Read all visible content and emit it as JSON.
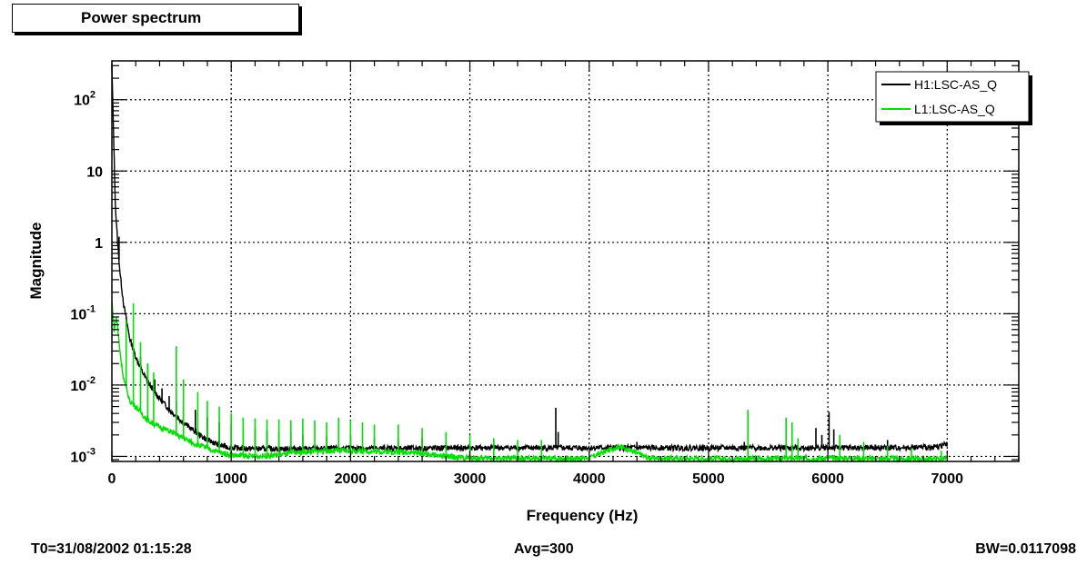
{
  "title": "Power spectrum",
  "footer": {
    "t0": "T0=31/08/2002 01:15:28",
    "avg": "Avg=300",
    "bw": "BW=0.0117098"
  },
  "chart_data": {
    "type": "line",
    "title": "Power spectrum",
    "xlabel": "Frequency (Hz)",
    "ylabel": "Magnitude",
    "xlim": [
      0,
      7600
    ],
    "ylim": [
      0.00085,
      350
    ],
    "yscale": "log",
    "grid": true,
    "legend_position": "top-right",
    "x_ticks": [
      0,
      1000,
      2000,
      3000,
      4000,
      5000,
      6000,
      7000
    ],
    "x_tick_labels": [
      "0",
      "1000",
      "2000",
      "3000",
      "4000",
      "5000",
      "6000",
      "7000"
    ],
    "y_ticks": [
      0.001,
      0.01,
      0.1,
      1,
      10,
      100
    ],
    "y_tick_labels": [
      {
        "base": "10",
        "exp": "-3"
      },
      {
        "base": "10",
        "exp": "-2"
      },
      {
        "base": "10",
        "exp": "-1"
      },
      {
        "base": "1",
        "exp": ""
      },
      {
        "base": "10",
        "exp": ""
      },
      {
        "base": "10",
        "exp": "2"
      }
    ],
    "series": [
      {
        "name": "H1:LSC-AS_Q",
        "color": "#000000",
        "points": [
          [
            0,
            300
          ],
          [
            15,
            30
          ],
          [
            30,
            3
          ],
          [
            50,
            0.9
          ],
          [
            70,
            0.35
          ],
          [
            100,
            0.13
          ],
          [
            150,
            0.045
          ],
          [
            200,
            0.025
          ],
          [
            250,
            0.016
          ],
          [
            300,
            0.011
          ],
          [
            400,
            0.0065
          ],
          [
            500,
            0.0042
          ],
          [
            600,
            0.003
          ],
          [
            700,
            0.0022
          ],
          [
            800,
            0.0017
          ],
          [
            900,
            0.00145
          ],
          [
            1000,
            0.00132
          ],
          [
            1200,
            0.00128
          ],
          [
            1500,
            0.00128
          ],
          [
            2000,
            0.0013
          ],
          [
            2500,
            0.0013
          ],
          [
            3000,
            0.00132
          ],
          [
            3500,
            0.00132
          ],
          [
            4000,
            0.00132
          ],
          [
            4500,
            0.00132
          ],
          [
            5000,
            0.00132
          ],
          [
            5500,
            0.00132
          ],
          [
            6000,
            0.00132
          ],
          [
            6500,
            0.00132
          ],
          [
            6900,
            0.00135
          ],
          [
            7000,
            0.0015
          ]
        ],
        "spikes": [
          [
            60,
            1.2
          ],
          [
            120,
            0.09
          ],
          [
            180,
            0.03
          ],
          [
            240,
            0.025
          ],
          [
            300,
            0.02
          ],
          [
            360,
            0.012
          ],
          [
            420,
            0.009
          ],
          [
            480,
            0.007
          ],
          [
            540,
            0.006
          ],
          [
            600,
            0.005
          ],
          [
            700,
            0.0045
          ],
          [
            800,
            0.0035
          ],
          [
            900,
            0.003
          ],
          [
            1000,
            0.0028
          ],
          [
            1100,
            0.0025
          ],
          [
            1200,
            0.0024
          ],
          [
            1300,
            0.0023
          ],
          [
            1400,
            0.0022
          ],
          [
            1500,
            0.0022
          ],
          [
            1600,
            0.002
          ],
          [
            1800,
            0.0019
          ],
          [
            2000,
            0.002
          ],
          [
            2200,
            0.0018
          ],
          [
            2400,
            0.0017
          ],
          [
            2600,
            0.0018
          ],
          [
            2800,
            0.0016
          ],
          [
            3200,
            0.0016
          ],
          [
            3720,
            0.0048
          ],
          [
            3740,
            0.0022
          ],
          [
            4400,
            0.0016
          ],
          [
            5300,
            0.0016
          ],
          [
            5900,
            0.0025
          ],
          [
            5950,
            0.002
          ],
          [
            6010,
            0.0042
          ],
          [
            6050,
            0.0024
          ],
          [
            6500,
            0.0017
          ]
        ]
      },
      {
        "name": "L1:LSC-AS_Q",
        "color": "#00e000",
        "points": [
          [
            0,
            0.15
          ],
          [
            20,
            0.06
          ],
          [
            40,
            0.09
          ],
          [
            60,
            0.04
          ],
          [
            80,
            0.02
          ],
          [
            100,
            0.012
          ],
          [
            150,
            0.006
          ],
          [
            200,
            0.005
          ],
          [
            250,
            0.004
          ],
          [
            300,
            0.0032
          ],
          [
            400,
            0.0026
          ],
          [
            500,
            0.0022
          ],
          [
            600,
            0.0018
          ],
          [
            700,
            0.0015
          ],
          [
            800,
            0.0013
          ],
          [
            900,
            0.00115
          ],
          [
            1000,
            0.00105
          ],
          [
            1200,
            0.001
          ],
          [
            1400,
            0.00105
          ],
          [
            1600,
            0.00115
          ],
          [
            1800,
            0.0012
          ],
          [
            2000,
            0.0012
          ],
          [
            2200,
            0.00118
          ],
          [
            2500,
            0.00115
          ],
          [
            2800,
            0.001
          ],
          [
            3000,
            0.00095
          ],
          [
            3500,
            0.00093
          ],
          [
            4000,
            0.00095
          ],
          [
            4150,
            0.0012
          ],
          [
            4250,
            0.0014
          ],
          [
            4350,
            0.0012
          ],
          [
            4500,
            0.00095
          ],
          [
            5000,
            0.00093
          ],
          [
            5500,
            0.00093
          ],
          [
            6000,
            0.00095
          ],
          [
            6500,
            0.00093
          ],
          [
            7000,
            0.00093
          ]
        ],
        "spikes": [
          [
            120,
            0.08
          ],
          [
            180,
            0.14
          ],
          [
            240,
            0.04
          ],
          [
            300,
            0.02
          ],
          [
            350,
            0.015
          ],
          [
            540,
            0.035
          ],
          [
            600,
            0.012
          ],
          [
            720,
            0.008
          ],
          [
            800,
            0.006
          ],
          [
            900,
            0.005
          ],
          [
            1000,
            0.004
          ],
          [
            1100,
            0.0035
          ],
          [
            1200,
            0.0034
          ],
          [
            1300,
            0.0033
          ],
          [
            1400,
            0.0033
          ],
          [
            1500,
            0.0032
          ],
          [
            1600,
            0.0034
          ],
          [
            1700,
            0.0032
          ],
          [
            1800,
            0.003
          ],
          [
            1900,
            0.0035
          ],
          [
            2000,
            0.0032
          ],
          [
            2100,
            0.003
          ],
          [
            2200,
            0.0028
          ],
          [
            2400,
            0.0028
          ],
          [
            2600,
            0.0025
          ],
          [
            2800,
            0.0022
          ],
          [
            3000,
            0.002
          ],
          [
            3200,
            0.0018
          ],
          [
            3400,
            0.0017
          ],
          [
            3600,
            0.0017
          ],
          [
            5330,
            0.0045
          ],
          [
            5650,
            0.0035
          ],
          [
            5700,
            0.003
          ],
          [
            5750,
            0.0018
          ],
          [
            6100,
            0.002
          ],
          [
            6300,
            0.0016
          ],
          [
            6500,
            0.0014
          ],
          [
            6700,
            0.0013
          ],
          [
            6950,
            0.0012
          ]
        ]
      }
    ]
  }
}
